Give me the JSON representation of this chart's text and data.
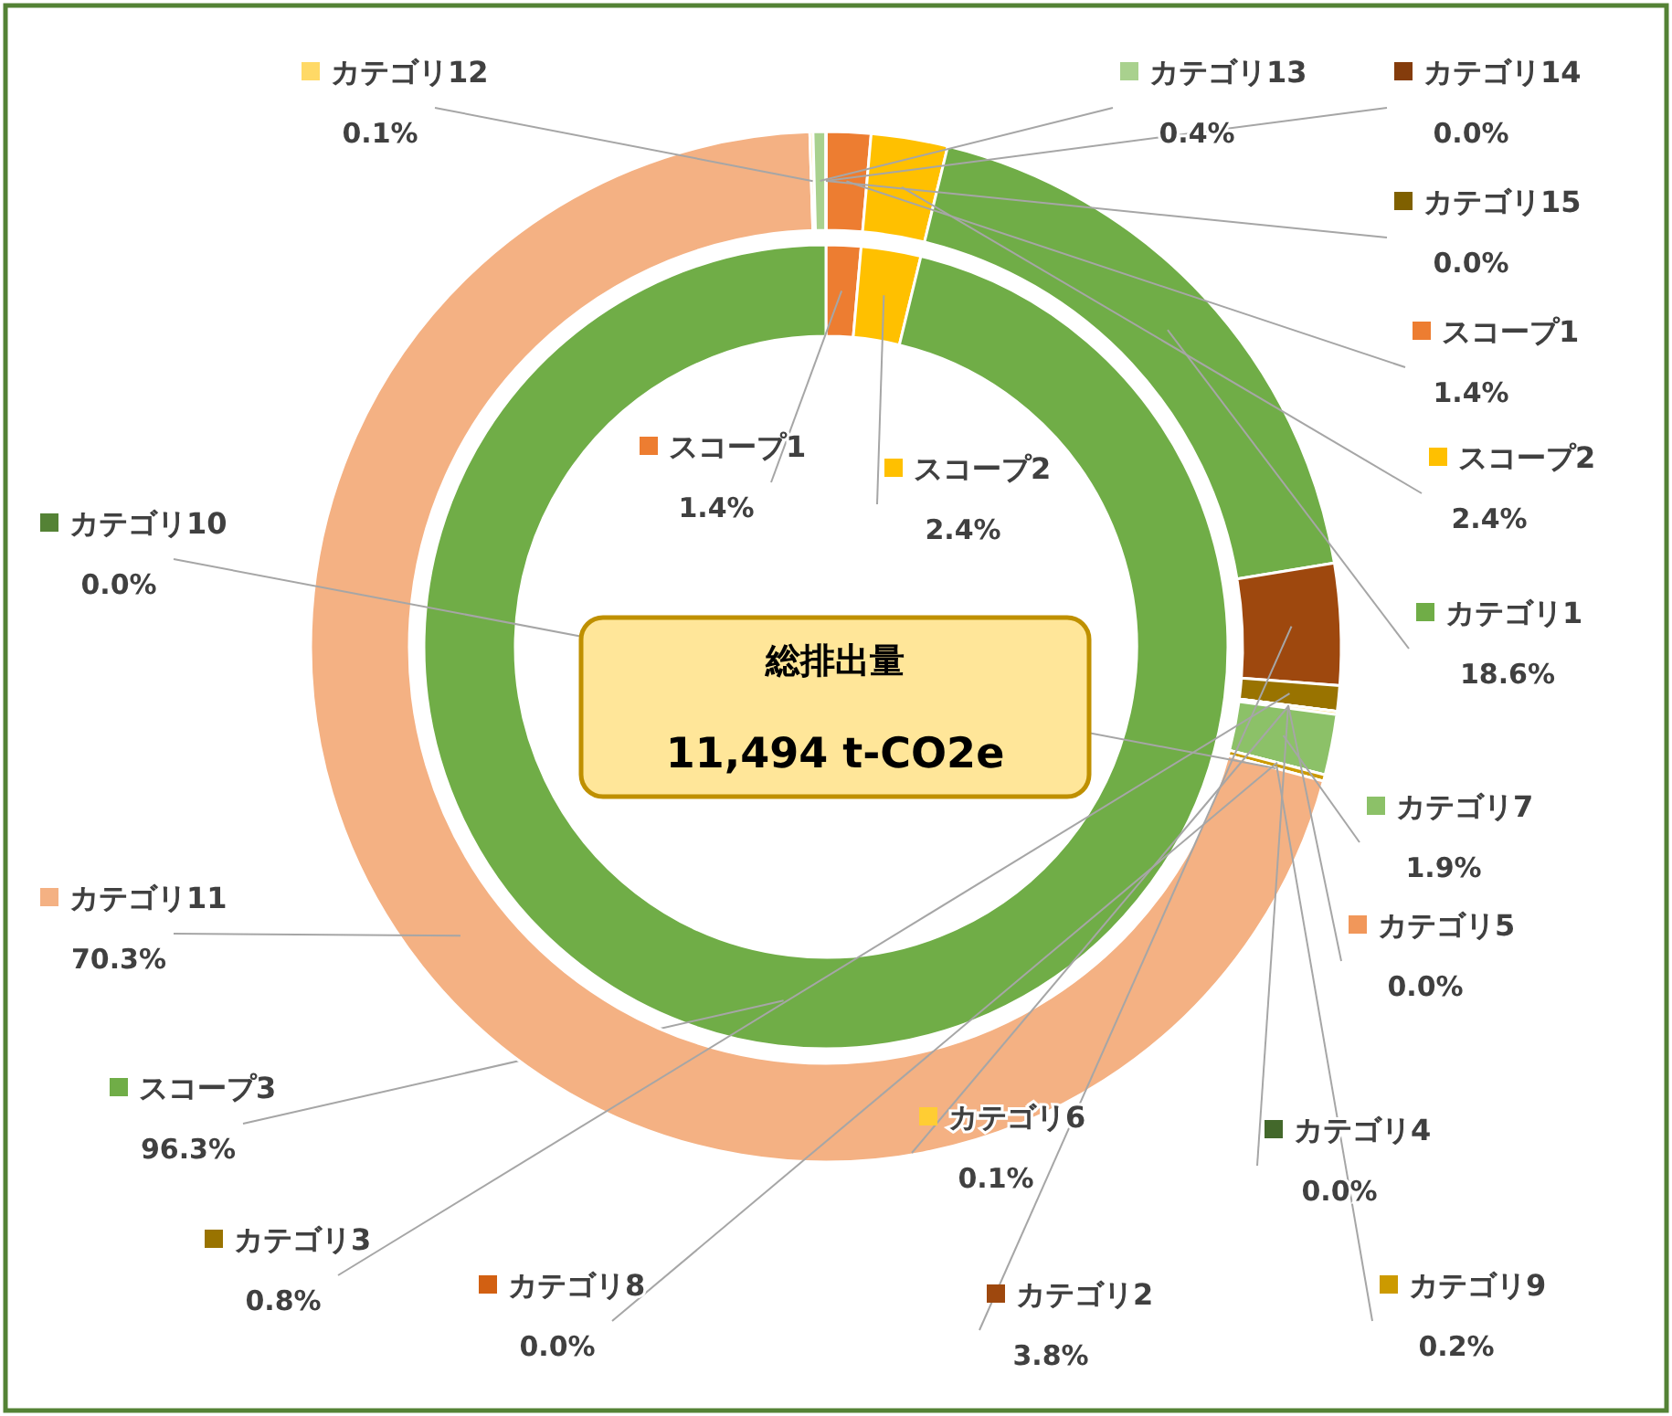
{
  "chart_data": [
    {
      "type": "donut",
      "categories": [
        "スコープ1",
        "スコープ2",
        "カテゴリ1",
        "カテゴリ2",
        "カテゴリ3",
        "カテゴリ4",
        "カテゴリ5",
        "カテゴリ6",
        "カテゴリ7",
        "カテゴリ8",
        "カテゴリ9",
        "カテゴリ10",
        "カテゴリ11",
        "カテゴリ12",
        "カテゴリ13",
        "カテゴリ14",
        "カテゴリ15"
      ],
      "values": [
        1.4,
        2.4,
        18.6,
        3.8,
        0.8,
        0.0,
        0.0,
        0.1,
        1.9,
        0.0,
        0.2,
        0.0,
        70.3,
        0.1,
        0.4,
        0.0,
        0.0
      ],
      "value_labels": [
        "1.4%",
        "2.4%",
        "18.6%",
        "3.8%",
        "0.8%",
        "0.0%",
        "0.0%",
        "0.1%",
        "1.9%",
        "0.0%",
        "0.2%",
        "0.0%",
        "70.3%",
        "0.1%",
        "0.4%",
        "0.0%",
        "0.0%"
      ],
      "colors": [
        "#ed7d31",
        "#ffc000",
        "#70ad47",
        "#9e480e",
        "#997300",
        "#43682b",
        "#f1975a",
        "#ffcd33",
        "#8cc168",
        "#d26012",
        "#cc9a00",
        "#548235",
        "#f4b183",
        "#ffd966",
        "#a9d18e",
        "#843c0c",
        "#7f6000"
      ],
      "annotations": [
        "総排出量",
        "11,494 t-CO2e"
      ],
      "legend": "right"
    },
    {
      "type": "donut",
      "categories": [
        "スコープ1",
        "スコープ2",
        "スコープ3"
      ],
      "values": [
        1.4,
        2.4,
        96.3
      ],
      "value_labels": [
        "1.4%",
        "2.4%",
        "96.3%"
      ],
      "colors": [
        "#ed7d31",
        "#ffc000",
        "#70ad47"
      ],
      "legend": "left"
    }
  ]
}
